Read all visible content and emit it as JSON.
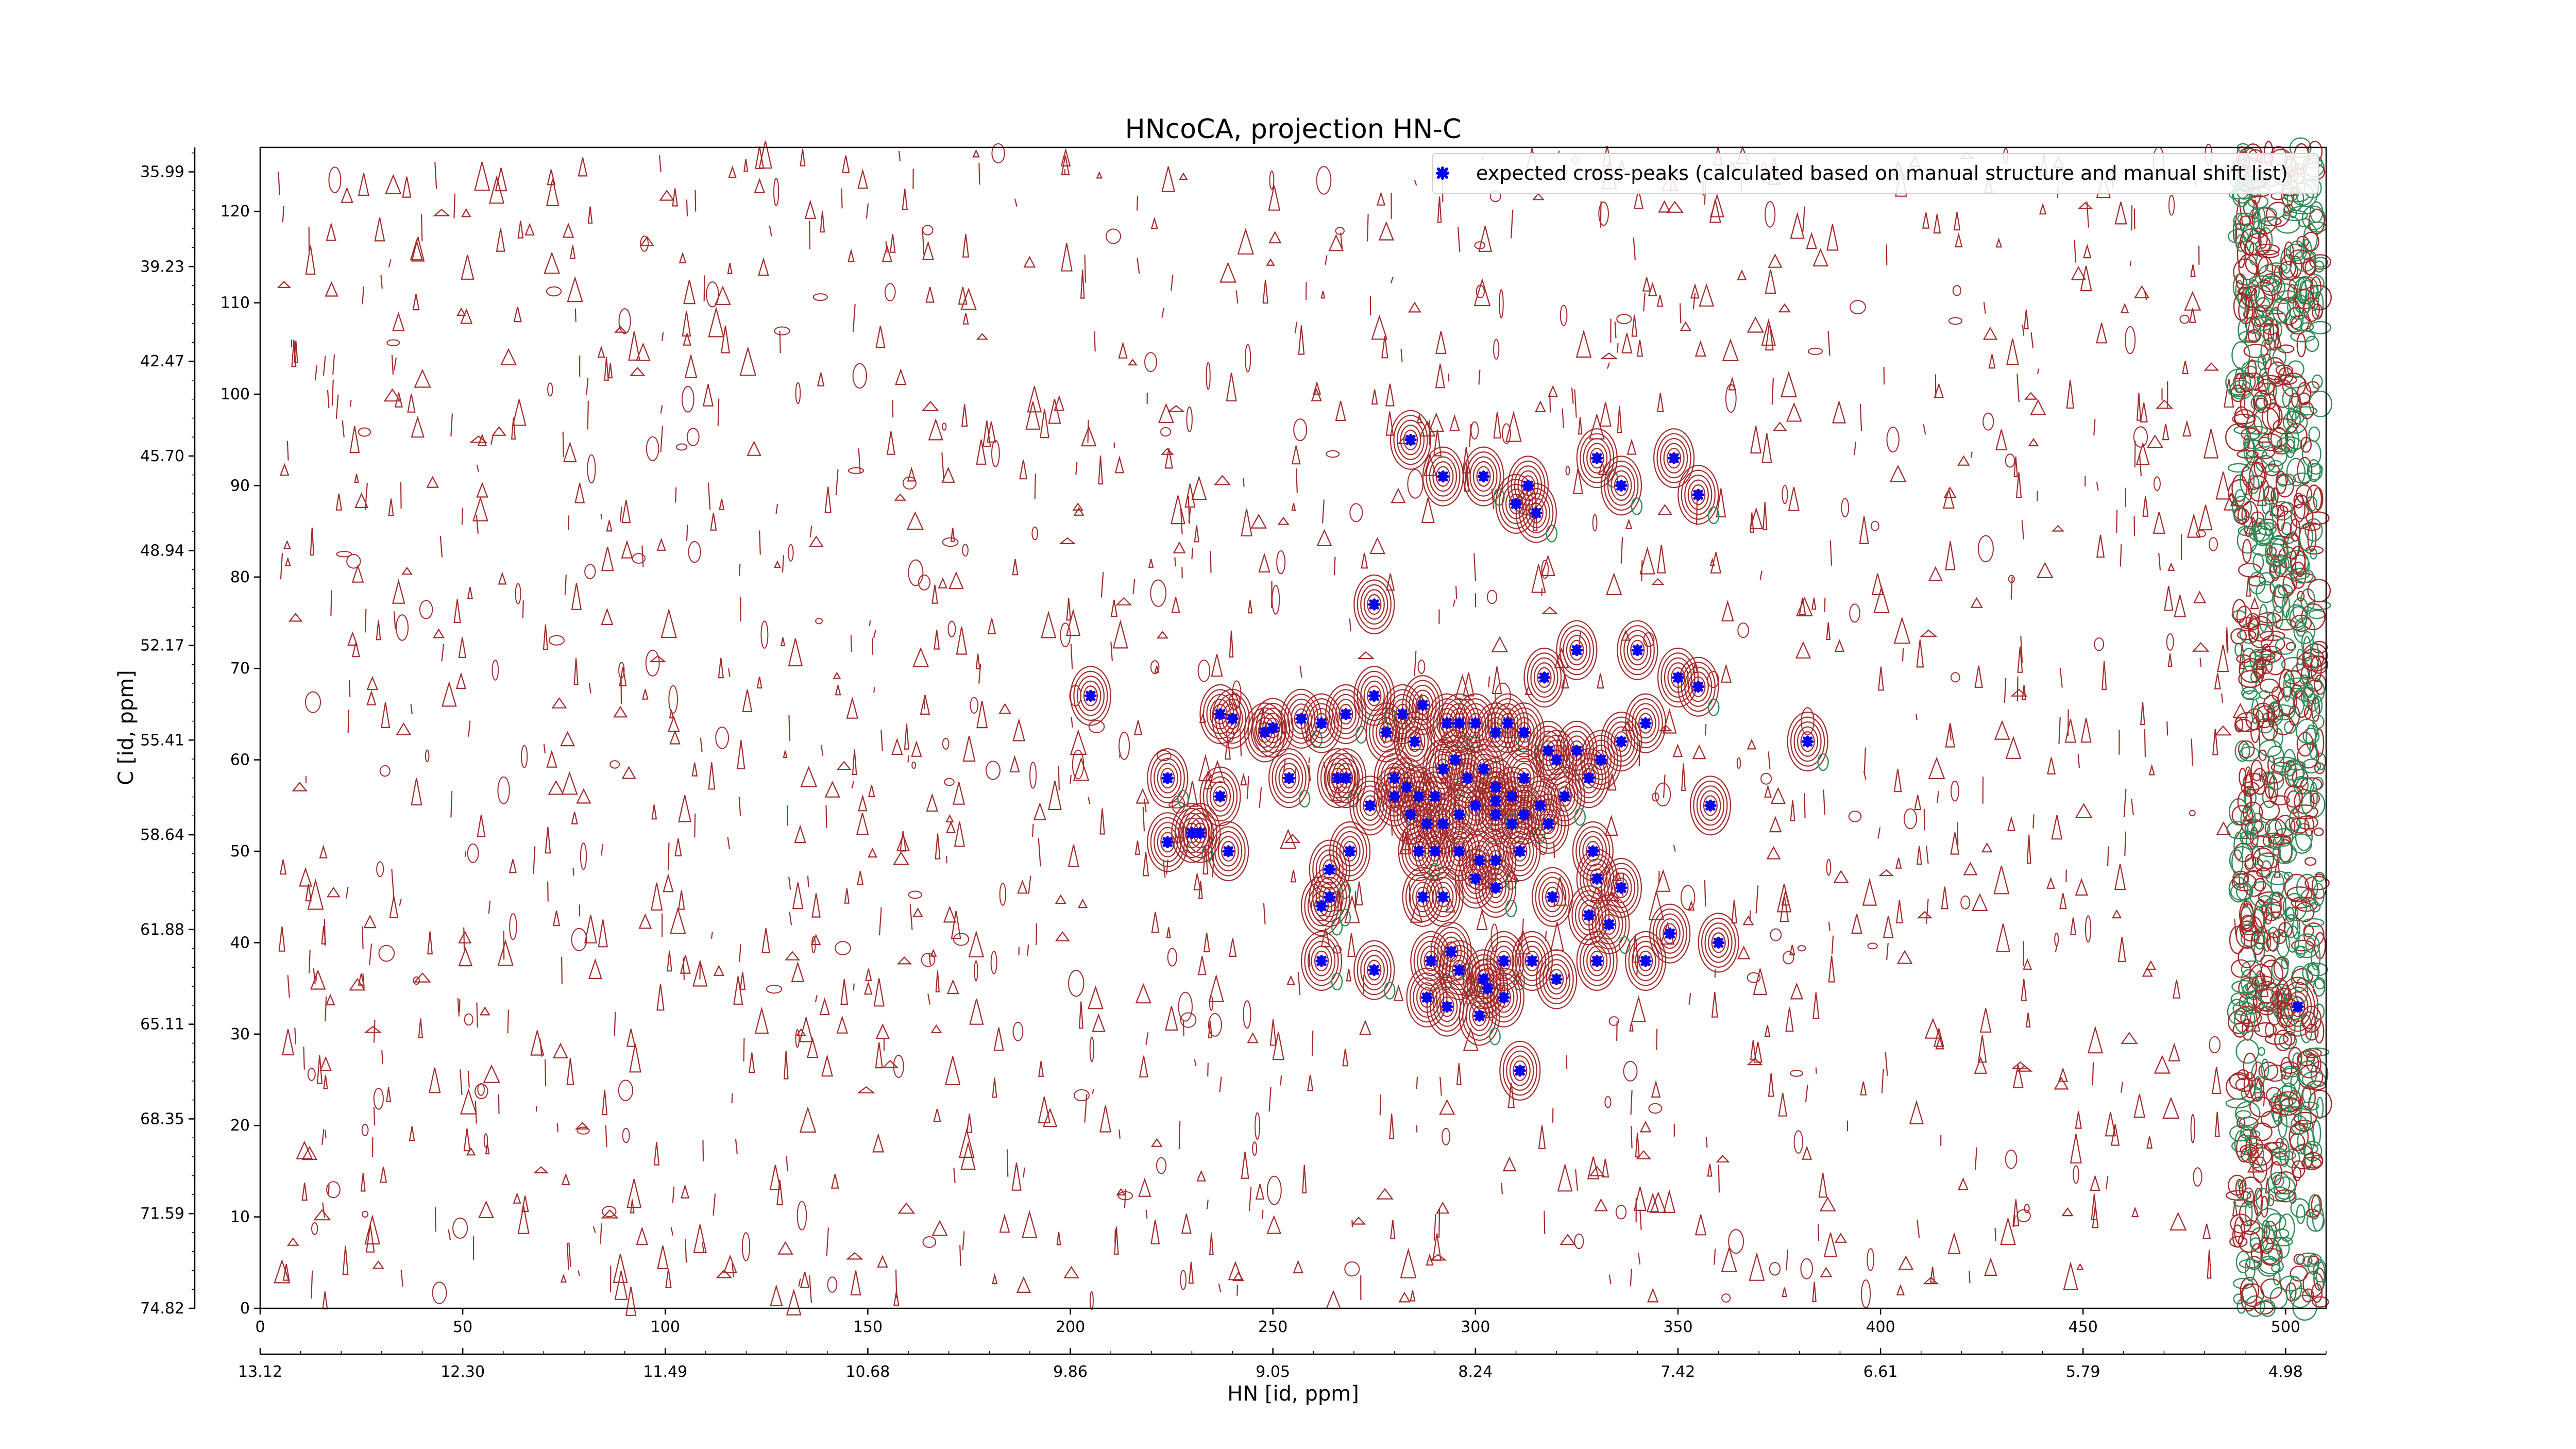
{
  "chart_data": {
    "type": "scatter",
    "title": "HNcoCA, projection HN-C",
    "xlabel": "HN [id, ppm]",
    "ylabel": "C [id, ppm]",
    "xlim": [
      0,
      510
    ],
    "ylim": [
      0,
      127
    ],
    "x_ticks": [
      0,
      50,
      100,
      150,
      200,
      250,
      300,
      350,
      400,
      450,
      500
    ],
    "y_ticks": [
      0,
      10,
      20,
      30,
      40,
      50,
      60,
      70,
      80,
      90,
      100,
      110,
      120
    ],
    "x_ppm_ticks": [
      "13.12",
      "12.30",
      "11.49",
      "10.68",
      "9.86",
      "9.05",
      "8.24",
      "7.42",
      "6.61",
      "5.79",
      "4.98"
    ],
    "y_ppm_ticks": [
      "74.82",
      "71.59",
      "68.35",
      "65.11",
      "61.88",
      "58.64",
      "55.41",
      "52.17",
      "48.94",
      "45.70",
      "42.47",
      "39.23",
      "35.99"
    ],
    "legend": {
      "position": "top-right",
      "label": "expected cross-peaks (calculated based on manual structure and manual shift list)",
      "marker_color": "#0000ff"
    },
    "contour_colors": {
      "positive": "#a52a2a",
      "negative": "#2e8b57"
    },
    "series": [
      {
        "name": "expected cross-peaks (calculated based on manual structure and manual shift list)",
        "points": [
          [
            284,
            95
          ],
          [
            292,
            91
          ],
          [
            302,
            91
          ],
          [
            313,
            90
          ],
          [
            330,
            93
          ],
          [
            336,
            90
          ],
          [
            349,
            93
          ],
          [
            355,
            89
          ],
          [
            310,
            88
          ],
          [
            315,
            87
          ],
          [
            275,
            77
          ],
          [
            205,
            67
          ],
          [
            340,
            72
          ],
          [
            325,
            72
          ],
          [
            317,
            69
          ],
          [
            350,
            69
          ],
          [
            355,
            68
          ],
          [
            237,
            65
          ],
          [
            240,
            64.5
          ],
          [
            248,
            63
          ],
          [
            250,
            63.5
          ],
          [
            257,
            64.5
          ],
          [
            262,
            64
          ],
          [
            268,
            65
          ],
          [
            275,
            67
          ],
          [
            282,
            65
          ],
          [
            278,
            63
          ],
          [
            285,
            62
          ],
          [
            287,
            66
          ],
          [
            293,
            64
          ],
          [
            296,
            64
          ],
          [
            300,
            64
          ],
          [
            305,
            63
          ],
          [
            308,
            64
          ],
          [
            312,
            63
          ],
          [
            318,
            61
          ],
          [
            320,
            60
          ],
          [
            325,
            61
          ],
          [
            331,
            60
          ],
          [
            336,
            62
          ],
          [
            342,
            64
          ],
          [
            224,
            58
          ],
          [
            237,
            56
          ],
          [
            254,
            58
          ],
          [
            266,
            58
          ],
          [
            268,
            58
          ],
          [
            280,
            58
          ],
          [
            283,
            57
          ],
          [
            286,
            56
          ],
          [
            290,
            56
          ],
          [
            292,
            59
          ],
          [
            295,
            60
          ],
          [
            298,
            58
          ],
          [
            302,
            59
          ],
          [
            305,
            57
          ],
          [
            309,
            56
          ],
          [
            312,
            58
          ],
          [
            316,
            55
          ],
          [
            322,
            56
          ],
          [
            328,
            58
          ],
          [
            280,
            56
          ],
          [
            284,
            54
          ],
          [
            288,
            53
          ],
          [
            292,
            53
          ],
          [
            296,
            54
          ],
          [
            300,
            55
          ],
          [
            305,
            54
          ],
          [
            309,
            53
          ],
          [
            312,
            54
          ],
          [
            318,
            53
          ],
          [
            274,
            55
          ],
          [
            305,
            55.5
          ],
          [
            224,
            51
          ],
          [
            230,
            52
          ],
          [
            232,
            52
          ],
          [
            239,
            50
          ],
          [
            264,
            48
          ],
          [
            269,
            50
          ],
          [
            286,
            50
          ],
          [
            290,
            50
          ],
          [
            296,
            50
          ],
          [
            301,
            49
          ],
          [
            305,
            49
          ],
          [
            311,
            50
          ],
          [
            329,
            50
          ],
          [
            330,
            47
          ],
          [
            358,
            55
          ],
          [
            262,
            44
          ],
          [
            264,
            45
          ],
          [
            287,
            45
          ],
          [
            292,
            45
          ],
          [
            300,
            47
          ],
          [
            305,
            46
          ],
          [
            319,
            45
          ],
          [
            328,
            43
          ],
          [
            333,
            42
          ],
          [
            336,
            46
          ],
          [
            262,
            38
          ],
          [
            275,
            37
          ],
          [
            289,
            38
          ],
          [
            294,
            39
          ],
          [
            296,
            37
          ],
          [
            302,
            36
          ],
          [
            307,
            38
          ],
          [
            314,
            38
          ],
          [
            330,
            38
          ],
          [
            360,
            40
          ],
          [
            288,
            34
          ],
          [
            293,
            33
          ],
          [
            301,
            32
          ],
          [
            303,
            35
          ],
          [
            307,
            34
          ],
          [
            320,
            36
          ],
          [
            342,
            38
          ],
          [
            348,
            41
          ],
          [
            311,
            26
          ],
          [
            382,
            62
          ],
          [
            503,
            33
          ]
        ]
      }
    ]
  }
}
